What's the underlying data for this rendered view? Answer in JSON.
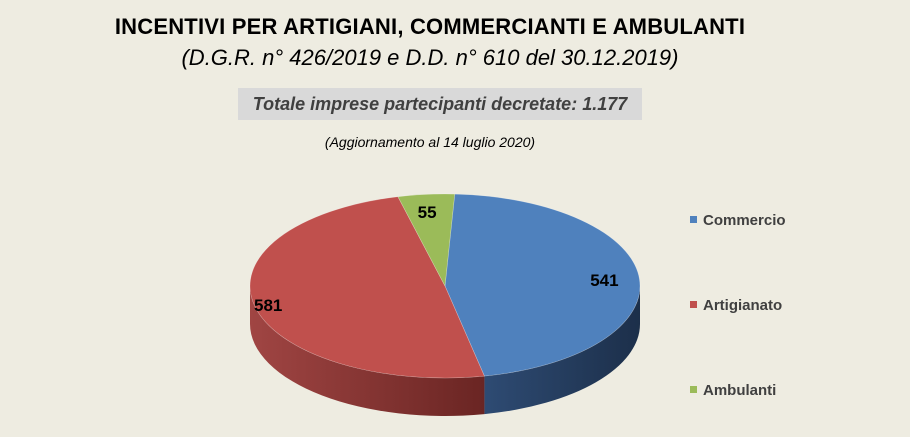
{
  "header": {
    "title": "INCENTIVI PER ARTIGIANI, COMMERCIANTI E AMBULANTI",
    "subtitle": "(D.G.R. n° 426/2019 e D.D. n° 610 del 30.12.2019)",
    "total": "Totale imprese partecipanti decretate: 1.177",
    "update_note": "(Aggiornamento al 14 luglio 2020)"
  },
  "chart_data": {
    "type": "pie",
    "title": "INCENTIVI PER ARTIGIANI, COMMERCIANTI E AMBULANTI",
    "subtitle": "(D.G.R. n° 426/2019 e D.D. n° 610 del 30.12.2019)",
    "three_d": true,
    "legend_position": "right",
    "categories": [
      "Commercio",
      "Artigianato",
      "Ambulanti"
    ],
    "values": [
      541,
      581,
      55
    ],
    "colors": [
      "#4f81bd",
      "#c0504d",
      "#9bbb59"
    ],
    "total": 1177
  }
}
